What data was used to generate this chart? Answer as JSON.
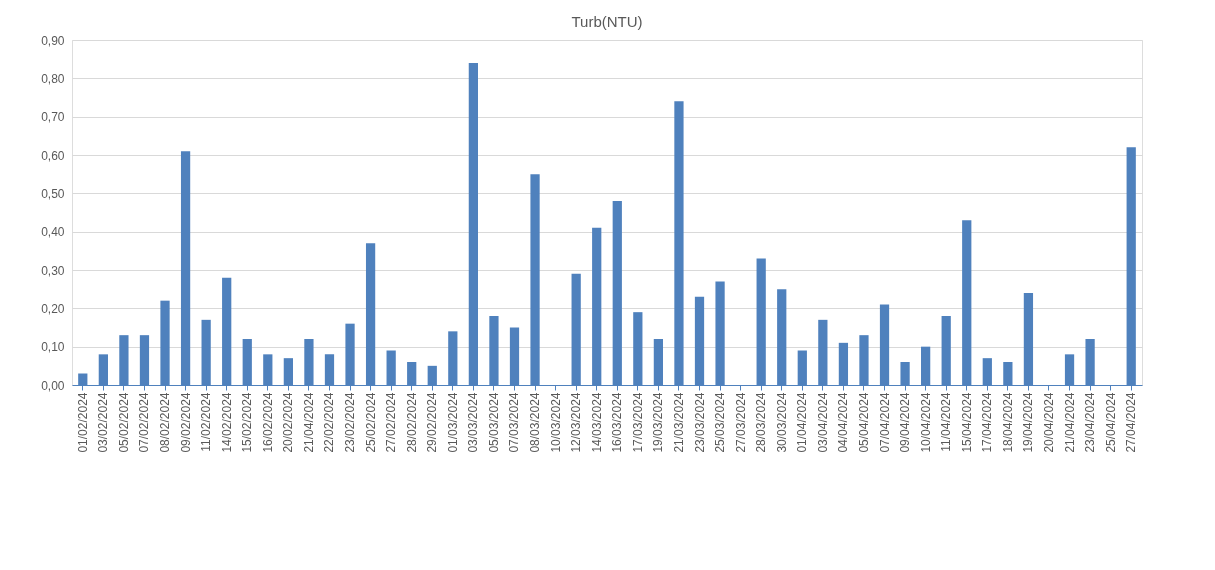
{
  "chart_data": {
    "type": "bar",
    "title": "Turb(NTU)",
    "categories": [
      "01/02/2024",
      "03/02/2024",
      "05/02/2024",
      "07/02/2024",
      "08/02/2024",
      "09/02/2024",
      "11/02/2024",
      "14/02/2024",
      "15/02/2024",
      "16/02/2024",
      "20/02/2024",
      "21/04/2024",
      "22/02/2024",
      "23/02/2024",
      "25/02/2024",
      "27/02/2024",
      "28/02/2024",
      "29/02/2024",
      "01/03/2024",
      "03/03/2024",
      "05/03/2024",
      "07/03/2024",
      "08/03/2024",
      "10/03/2024",
      "12/03/2024",
      "14/03/2024",
      "16/03/2024",
      "17/03/2024",
      "19/03/2024",
      "21/03/2024",
      "23/03/2024",
      "25/03/2024",
      "27/03/2024",
      "28/03/2024",
      "30/03/2024",
      "01/04/2024",
      "03/04/2024",
      "04/04/2024",
      "05/04/2024",
      "07/04/2024",
      "09/04/2024",
      "10/04/2024",
      "11/04/2024",
      "15/04/2024",
      "17/04/2024",
      "18/04/2024",
      "19/04/2024",
      "20/04/2024",
      "21/04/2024",
      "23/04/2024",
      "25/04/2024",
      "27/04/2024"
    ],
    "values": [
      0.03,
      0.08,
      0.13,
      0.13,
      0.22,
      0.61,
      0.17,
      0.28,
      0.12,
      0.08,
      0.07,
      0.12,
      0.08,
      0.16,
      0.37,
      0.09,
      0.06,
      0.05,
      0.14,
      0.84,
      0.18,
      0.15,
      0.55,
      0.0,
      0.29,
      0.41,
      0.48,
      0.19,
      0.12,
      0.74,
      0.23,
      0.27,
      0.0,
      0.33,
      0.25,
      0.09,
      0.17,
      0.11,
      0.13,
      0.21,
      0.06,
      0.1,
      0.18,
      0.43,
      0.07,
      0.06,
      0.24,
      0.0,
      0.08,
      0.12,
      0.0,
      0.62
    ],
    "color": "#4f81bd",
    "ylim": [
      0,
      0.9
    ],
    "yticks": [
      {
        "value": 0,
        "label": "0,00"
      },
      {
        "value": 0.1,
        "label": "0,10"
      },
      {
        "value": 0.2,
        "label": "0,20"
      },
      {
        "value": 0.3,
        "label": "0,30"
      },
      {
        "value": 0.4,
        "label": "0,40"
      },
      {
        "value": 0.5,
        "label": "0,50"
      },
      {
        "value": 0.6,
        "label": "0,60"
      },
      {
        "value": 0.7,
        "label": "0,70"
      },
      {
        "value": 0.8,
        "label": "0,80"
      },
      {
        "value": 0.9,
        "label": "0,90"
      }
    ],
    "grid": "y"
  }
}
